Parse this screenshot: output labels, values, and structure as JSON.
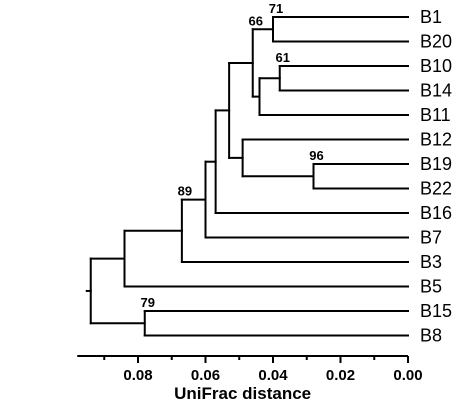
{
  "figure": {
    "type": "dendrogram",
    "leaves": [
      "B1",
      "B20",
      "B10",
      "B14",
      "B11",
      "B12",
      "B19",
      "B22",
      "B16",
      "B7",
      "B3",
      "B5",
      "B15",
      "B8"
    ],
    "nodes": [
      {
        "id": "n_b1_b20",
        "children": [
          "B1",
          "B20"
        ],
        "height": 0.04,
        "support": "71"
      },
      {
        "id": "n_b10_b14",
        "children": [
          "B10",
          "B14"
        ],
        "height": 0.038,
        "support": "61"
      },
      {
        "id": "n_b10_b14_b11",
        "children": [
          "n_b10_b14",
          "B11"
        ],
        "height": 0.044,
        "support": ""
      },
      {
        "id": "n_top4",
        "children": [
          "n_b1_b20",
          "n_b10_b14_b11"
        ],
        "height": 0.046,
        "support": "66"
      },
      {
        "id": "n_b19_b22",
        "children": [
          "B19",
          "B22"
        ],
        "height": 0.028,
        "support": "96"
      },
      {
        "id": "n_b12_grp",
        "children": [
          "B12",
          "n_b19_b22"
        ],
        "height": 0.049,
        "support": ""
      },
      {
        "id": "n_top8",
        "children": [
          "n_top4",
          "n_b12_grp"
        ],
        "height": 0.053,
        "support": ""
      },
      {
        "id": "n_top9",
        "children": [
          "n_top8",
          "B16"
        ],
        "height": 0.057,
        "support": ""
      },
      {
        "id": "n_top10",
        "children": [
          "n_top9",
          "B7"
        ],
        "height": 0.06,
        "support": ""
      },
      {
        "id": "n_top11",
        "children": [
          "n_top10",
          "B3"
        ],
        "height": 0.067,
        "support": "89"
      },
      {
        "id": "n_top12",
        "children": [
          "n_top11",
          "B5"
        ],
        "height": 0.084,
        "support": ""
      },
      {
        "id": "n_b15_b8",
        "children": [
          "B15",
          "B8"
        ],
        "height": 0.078,
        "support": "79"
      },
      {
        "id": "n_root",
        "children": [
          "n_top12",
          "n_b15_b8"
        ],
        "height": 0.094,
        "support": ""
      }
    ],
    "axis": {
      "title": "UniFrac distance",
      "ticks": [
        "0.08",
        "0.06",
        "0.04",
        "0.02",
        "0.00"
      ],
      "tick_values": [
        0.08,
        0.06,
        0.04,
        0.02,
        0.0
      ],
      "range": [
        0.098,
        0.0
      ],
      "reversed": true
    },
    "colors": {
      "line": "#000000",
      "text": "#000000",
      "background": "#ffffff"
    }
  }
}
